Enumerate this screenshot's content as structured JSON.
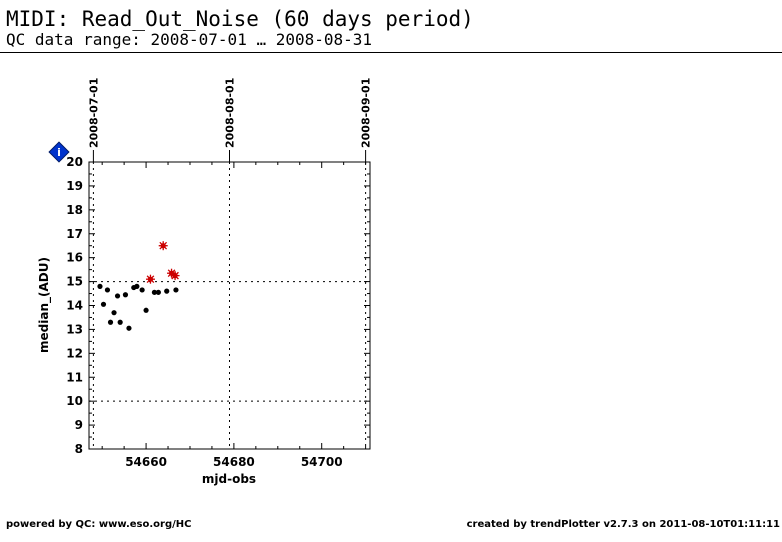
{
  "header": {
    "title": "MIDI: Read_Out_Noise (60 days period)",
    "subtitle": "QC data range: 2008-07-01 … 2008-08-31"
  },
  "footer": {
    "left": "powered by QC: www.eso.org/HC",
    "right": "created by trendPlotter v2.7.3 on 2011-08-10T01:11:11"
  },
  "marker_colors": {
    "normal": "#000000",
    "flagged": "#cc0000",
    "info_icon": "#0033cc"
  },
  "info_icon": {
    "label": "i"
  },
  "chart_data": {
    "type": "scatter",
    "xlabel": "mjd-obs",
    "ylabel": "median_(ADU)",
    "xlim": [
      54647,
      54711
    ],
    "ylim": [
      8,
      20
    ],
    "xticks": [
      54660,
      54680,
      54700
    ],
    "xtick_labels": [
      "54660",
      "54680",
      "54700"
    ],
    "yticks": [
      8,
      9,
      10,
      11,
      12,
      13,
      14,
      15,
      16,
      17,
      18,
      19,
      20
    ],
    "ytick_labels": [
      "8",
      "9",
      "10",
      "11",
      "12",
      "13",
      "14",
      "15",
      "16",
      "17",
      "18",
      "19",
      "20"
    ],
    "date_markers": [
      {
        "x": 54648,
        "label": "2008-07-01"
      },
      {
        "x": 54679,
        "label": "2008-08-01"
      },
      {
        "x": 54710,
        "label": "2008-09-01"
      }
    ],
    "reference_lines_y": [
      10,
      15
    ],
    "grid": false,
    "series": [
      {
        "marker": "dot",
        "points": [
          {
            "x": 54649.5,
            "y": 14.8
          },
          {
            "x": 54650.3,
            "y": 14.05
          },
          {
            "x": 54651.2,
            "y": 14.65
          },
          {
            "x": 54651.9,
            "y": 13.3
          },
          {
            "x": 54652.7,
            "y": 13.7
          },
          {
            "x": 54653.5,
            "y": 14.4
          },
          {
            "x": 54654.1,
            "y": 13.3
          },
          {
            "x": 54655.3,
            "y": 14.45
          },
          {
            "x": 54656.1,
            "y": 13.05
          },
          {
            "x": 54657.2,
            "y": 14.75
          },
          {
            "x": 54657.9,
            "y": 14.8
          },
          {
            "x": 54659.1,
            "y": 14.65
          },
          {
            "x": 54660.0,
            "y": 13.8
          },
          {
            "x": 54661.9,
            "y": 14.55
          },
          {
            "x": 54662.8,
            "y": 14.55
          },
          {
            "x": 54664.7,
            "y": 14.6
          },
          {
            "x": 54666.8,
            "y": 14.65
          }
        ]
      },
      {
        "marker": "flagged-star",
        "points": [
          {
            "x": 54661.0,
            "y": 15.1
          },
          {
            "x": 54663.9,
            "y": 16.5
          },
          {
            "x": 54665.8,
            "y": 15.35
          },
          {
            "x": 54666.6,
            "y": 15.25
          }
        ]
      }
    ]
  }
}
